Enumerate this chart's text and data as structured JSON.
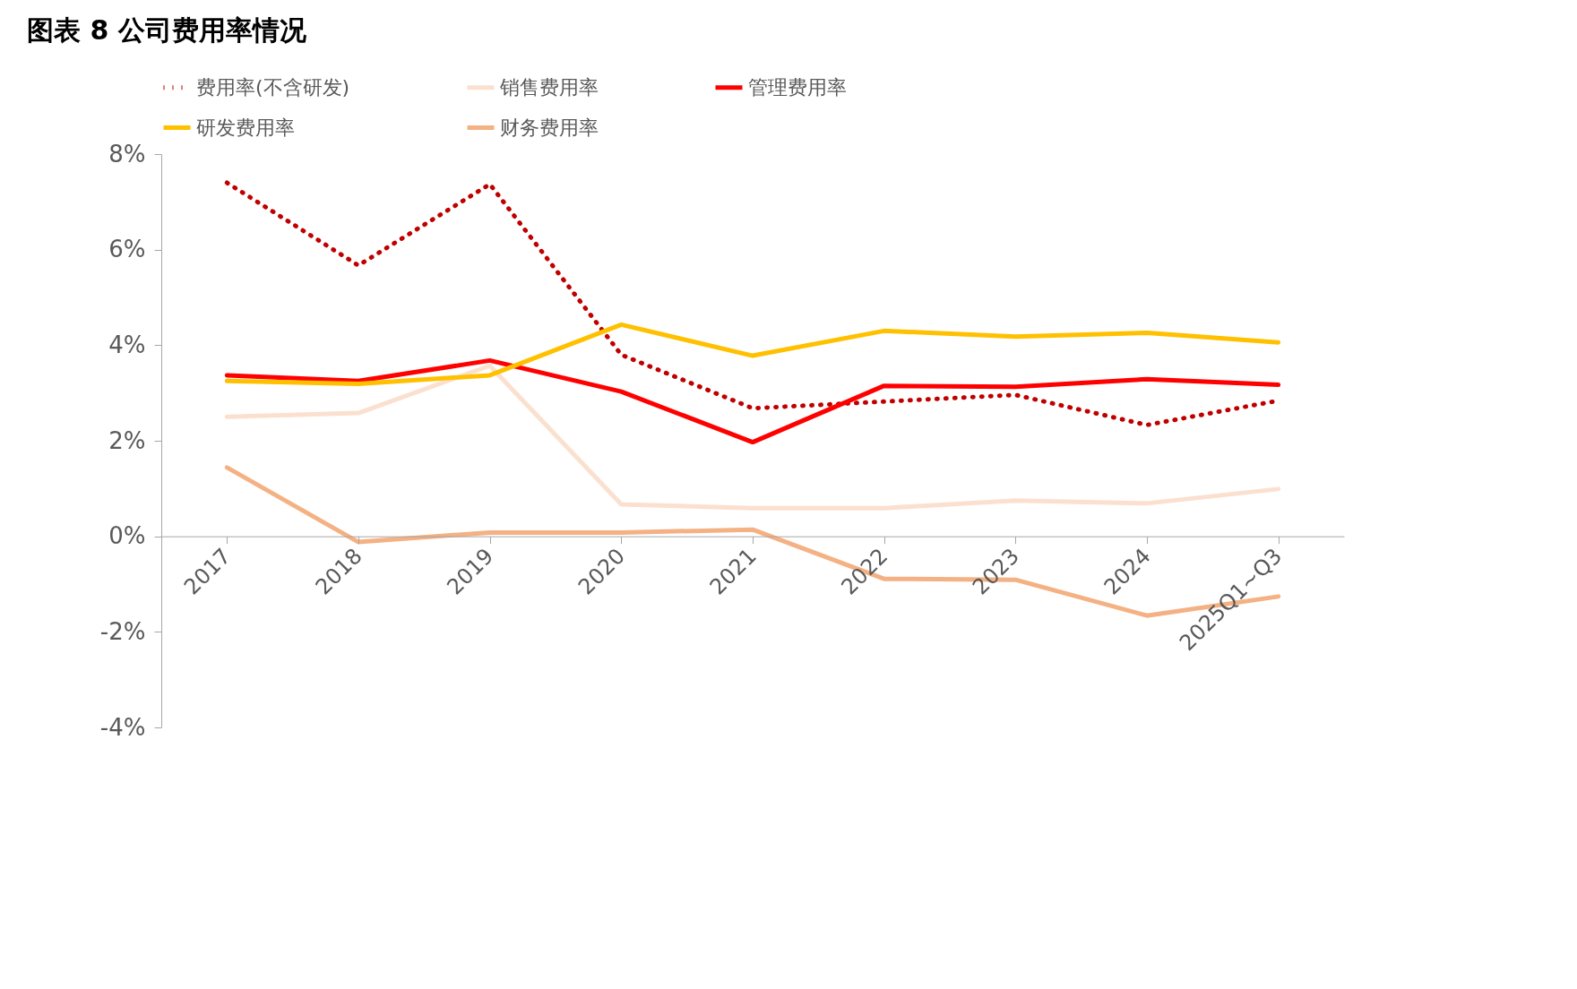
{
  "chart_data": {
    "type": "line",
    "title": "图表 8  公司费用率情况",
    "categories": [
      "2017",
      "2018",
      "2019",
      "2020",
      "2021",
      "2022",
      "2023",
      "2024",
      "2025Q1~Q3"
    ],
    "series": [
      {
        "name": "费用率(不含研发)",
        "color": "#c00000",
        "line_style": "dotted",
        "values": [
          7.4,
          5.67,
          7.37,
          3.8,
          2.68,
          2.82,
          2.96,
          2.33,
          2.84
        ]
      },
      {
        "name": "销售费用率",
        "color": "#fbe0d0",
        "values": [
          2.5,
          2.58,
          3.57,
          0.67,
          0.59,
          0.59,
          0.75,
          0.69,
          0.99
        ]
      },
      {
        "name": "管理费用率",
        "color": "#ff0000",
        "values": [
          3.37,
          3.25,
          3.68,
          3.03,
          1.97,
          3.15,
          3.13,
          3.29,
          3.17
        ]
      },
      {
        "name": "研发费用率",
        "color": "#ffc000",
        "values": [
          3.25,
          3.19,
          3.37,
          4.43,
          3.78,
          4.3,
          4.18,
          4.26,
          4.06
        ]
      },
      {
        "name": "财务费用率",
        "color": "#f4b183",
        "values": [
          1.44,
          -0.12,
          0.08,
          0.08,
          0.14,
          -0.89,
          -0.91,
          -1.66,
          -1.26
        ]
      }
    ],
    "ylim": [
      -4,
      8
    ],
    "yticks": [
      {
        "value": -4,
        "label": "-4%"
      },
      {
        "value": -2,
        "label": "-2%"
      },
      {
        "value": 0,
        "label": "0%"
      },
      {
        "value": 2,
        "label": "2%"
      },
      {
        "value": 4,
        "label": "4%"
      },
      {
        "value": 6,
        "label": "6%"
      },
      {
        "value": 8,
        "label": "8%"
      }
    ],
    "legend": "top",
    "grid": false,
    "line_style": "solid"
  }
}
